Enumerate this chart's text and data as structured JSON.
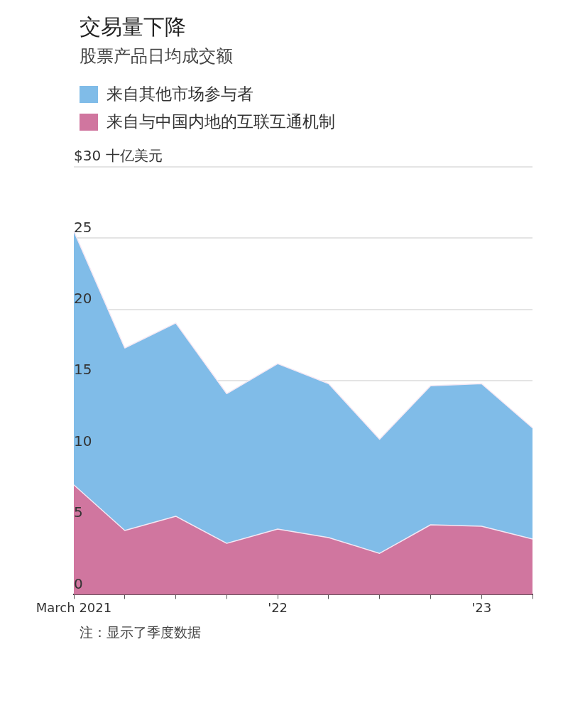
{
  "chart_data": {
    "type": "area",
    "title": "交易量下降",
    "subtitle": "股票产品日均成交额",
    "categories": [
      "March 2021",
      null,
      null,
      null,
      "'22",
      null,
      null,
      null,
      "'23",
      null
    ],
    "stacked": true,
    "series": [
      {
        "name": "来自与中国内地的互联互通机制",
        "color": "#d0769f",
        "values": [
          7.7,
          4.5,
          5.5,
          3.6,
          4.6,
          4.0,
          2.9,
          4.9,
          4.8,
          3.9
        ]
      },
      {
        "name": "来自其他市场参与者",
        "color": "#80bce8",
        "values": [
          17.8,
          12.8,
          13.55,
          10.5,
          11.6,
          10.8,
          8.0,
          9.75,
          10.0,
          7.8
        ]
      }
    ],
    "ylim": [
      0,
      30
    ],
    "yticks": [
      0,
      5,
      10,
      15,
      20,
      25,
      {
        "value": 30,
        "label": "$30 十亿美元"
      }
    ],
    "grid": "y",
    "legend": "top left",
    "annotations": [
      "注：显示了季度数据"
    ]
  }
}
